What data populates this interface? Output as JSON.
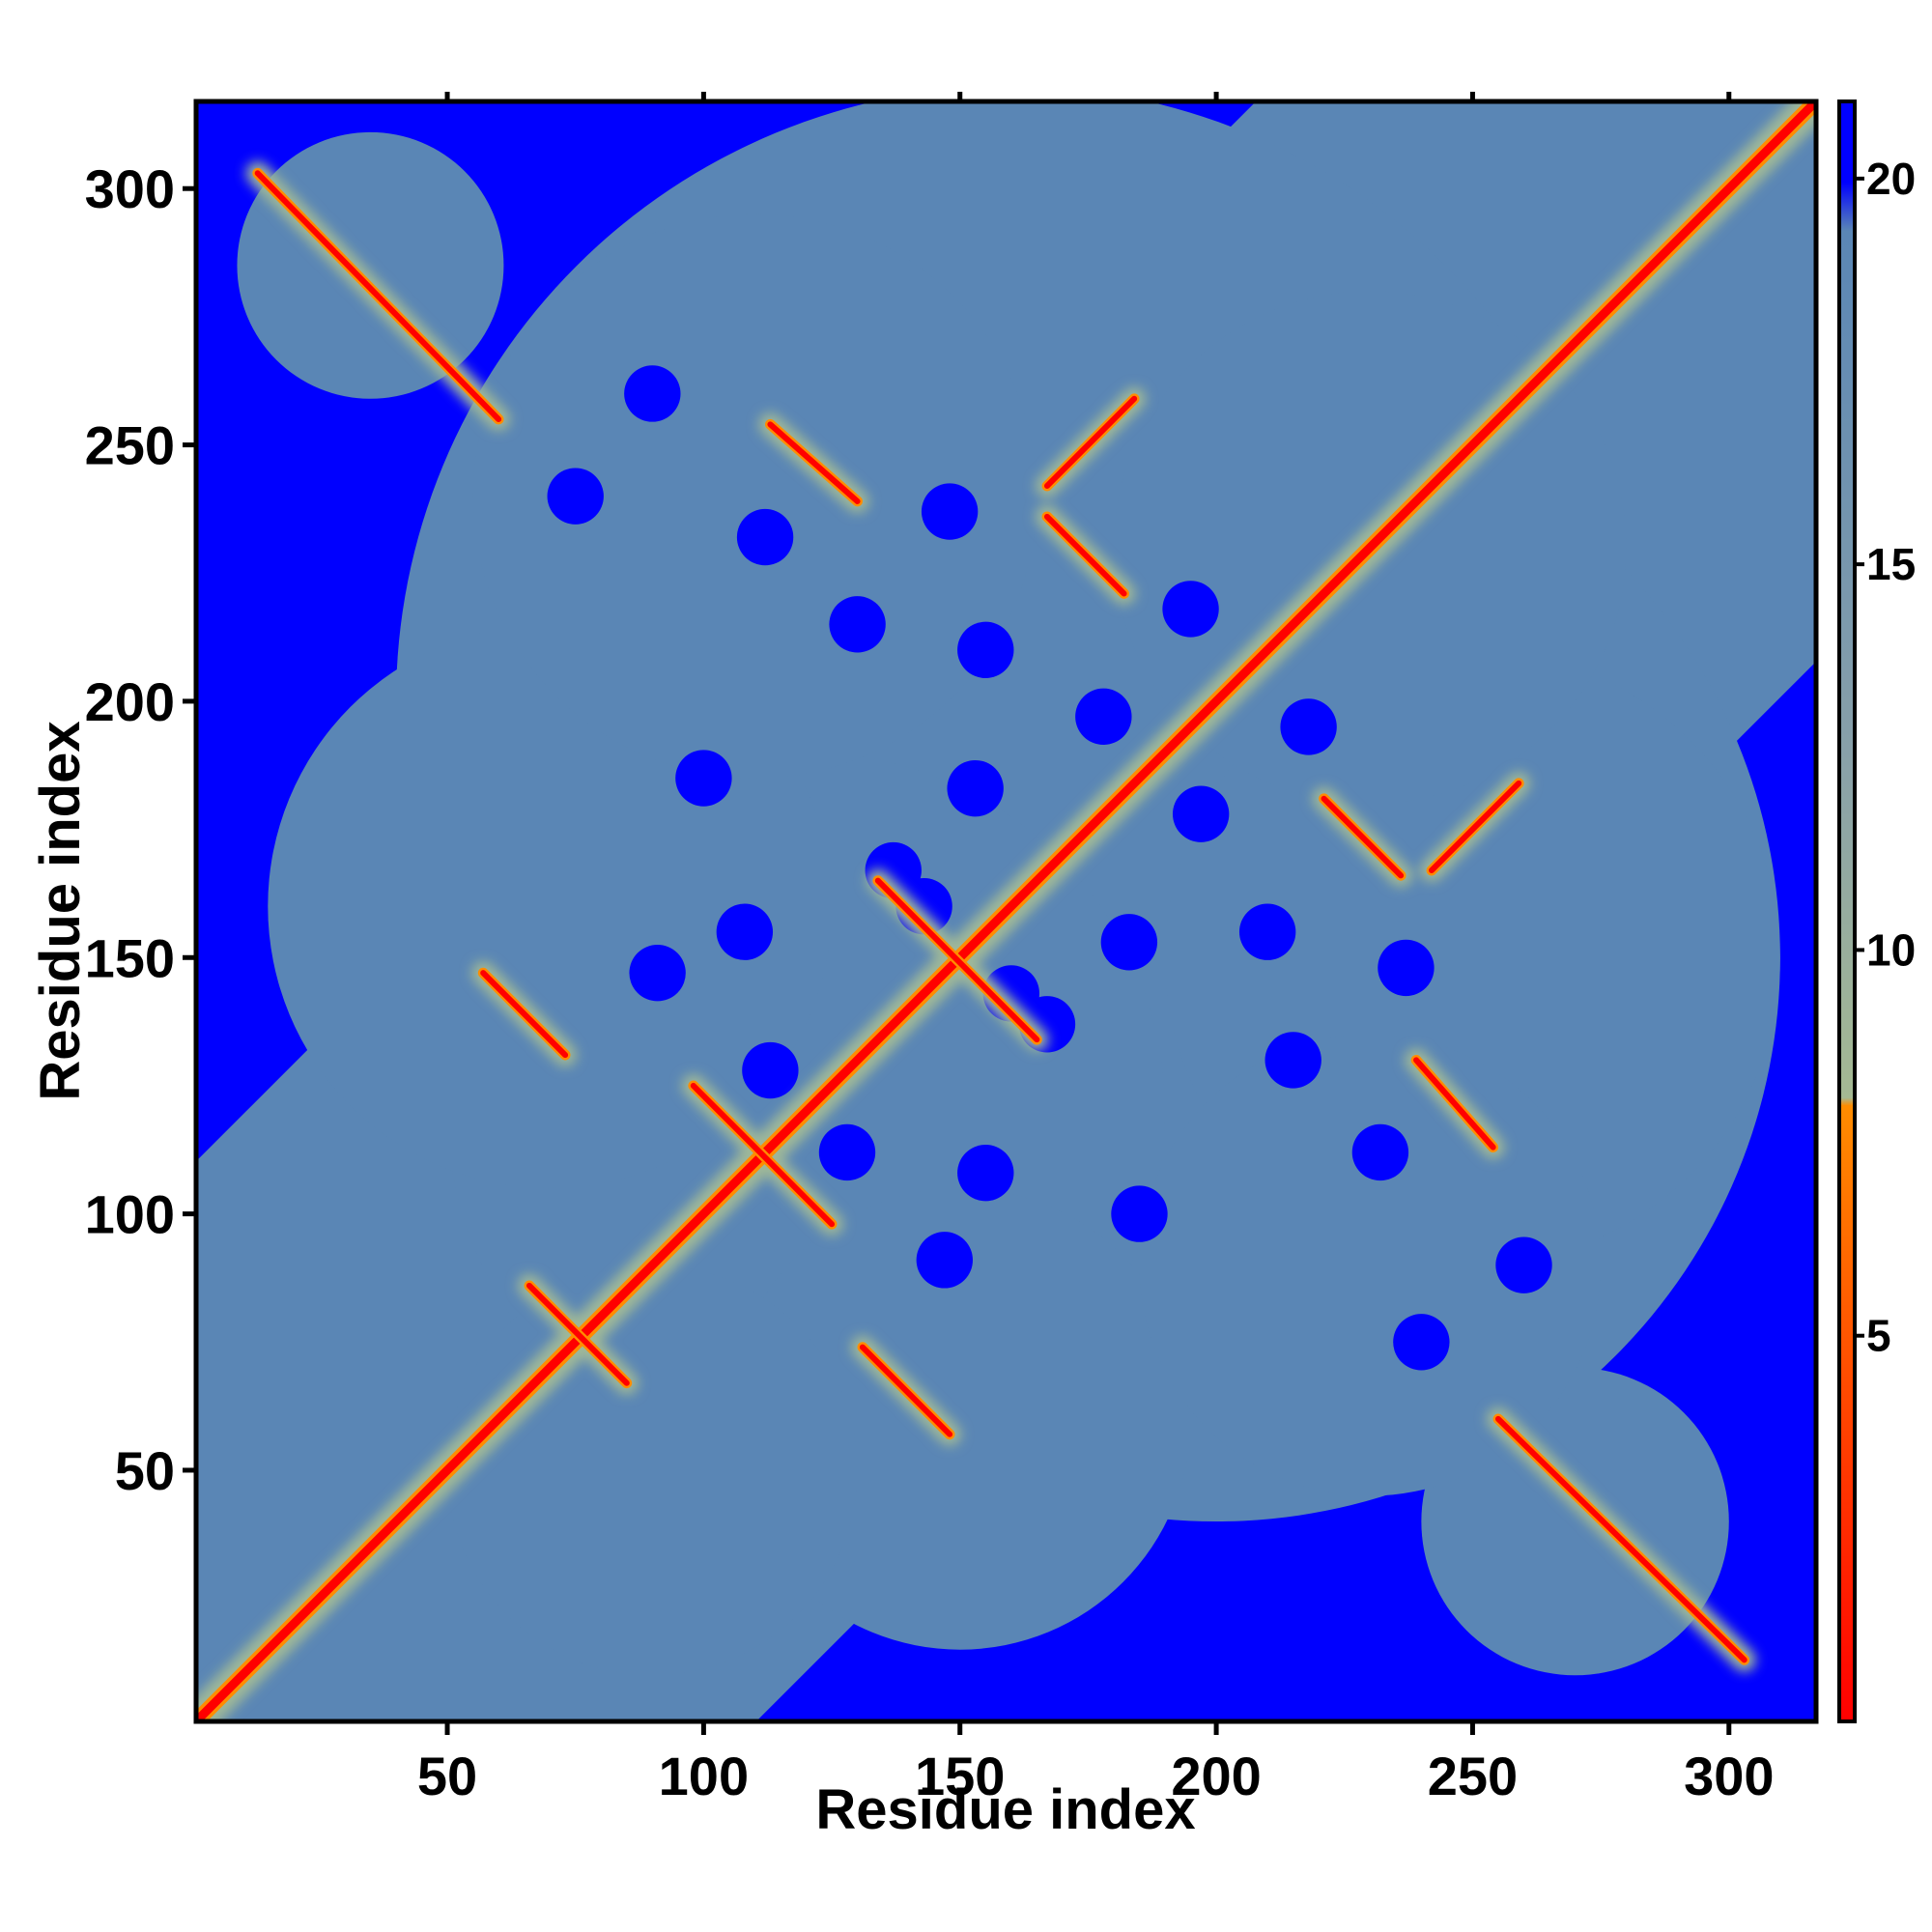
{
  "chart_data": {
    "type": "heatmap",
    "title": "",
    "xlabel": "Residue index",
    "ylabel": "Residue index",
    "xlim": [
      1,
      317
    ],
    "ylim": [
      1,
      317
    ],
    "xticks": [
      50,
      100,
      150,
      200,
      250,
      300
    ],
    "yticks": [
      50,
      100,
      150,
      200,
      250,
      300
    ],
    "colorbar": {
      "ticks": [
        5,
        10,
        15,
        20
      ],
      "range": [
        0,
        21
      ],
      "colors": {
        "min": "#ff0000",
        "low": "#ff8c00",
        "mid": "#9fb898",
        "high": "#5a86b5",
        "max": "#0000ff"
      }
    },
    "features": {
      "main_diagonal": "red band along x = y (distance ~0)",
      "antiparallel_contacts": [
        {
          "from": [
            13,
            303
          ],
          "to": [
            60,
            255
          ]
        },
        {
          "from": [
            255,
            60
          ],
          "to": [
            303,
            13
          ]
        },
        {
          "from": [
            57,
            147
          ],
          "to": [
            73,
            131
          ]
        },
        {
          "from": [
            66,
            86
          ],
          "to": [
            85,
            67
          ]
        },
        {
          "from": [
            98,
            125
          ],
          "to": [
            125,
            98
          ]
        },
        {
          "from": [
            131,
            74
          ],
          "to": [
            148,
            57
          ]
        },
        {
          "from": [
            113,
            254
          ],
          "to": [
            130,
            239
          ]
        },
        {
          "from": [
            134,
            165
          ],
          "to": [
            165,
            134
          ]
        },
        {
          "from": [
            167,
            236
          ],
          "to": [
            182,
            221
          ]
        },
        {
          "from": [
            221,
            181
          ],
          "to": [
            236,
            166
          ]
        },
        {
          "from": [
            239,
            130
          ],
          "to": [
            254,
            113
          ]
        }
      ],
      "parallel_contacts": [
        {
          "from": [
            167,
            242
          ],
          "to": [
            184,
            259
          ]
        },
        {
          "from": [
            242,
            167
          ],
          "to": [
            259,
            184
          ]
        }
      ]
    }
  }
}
